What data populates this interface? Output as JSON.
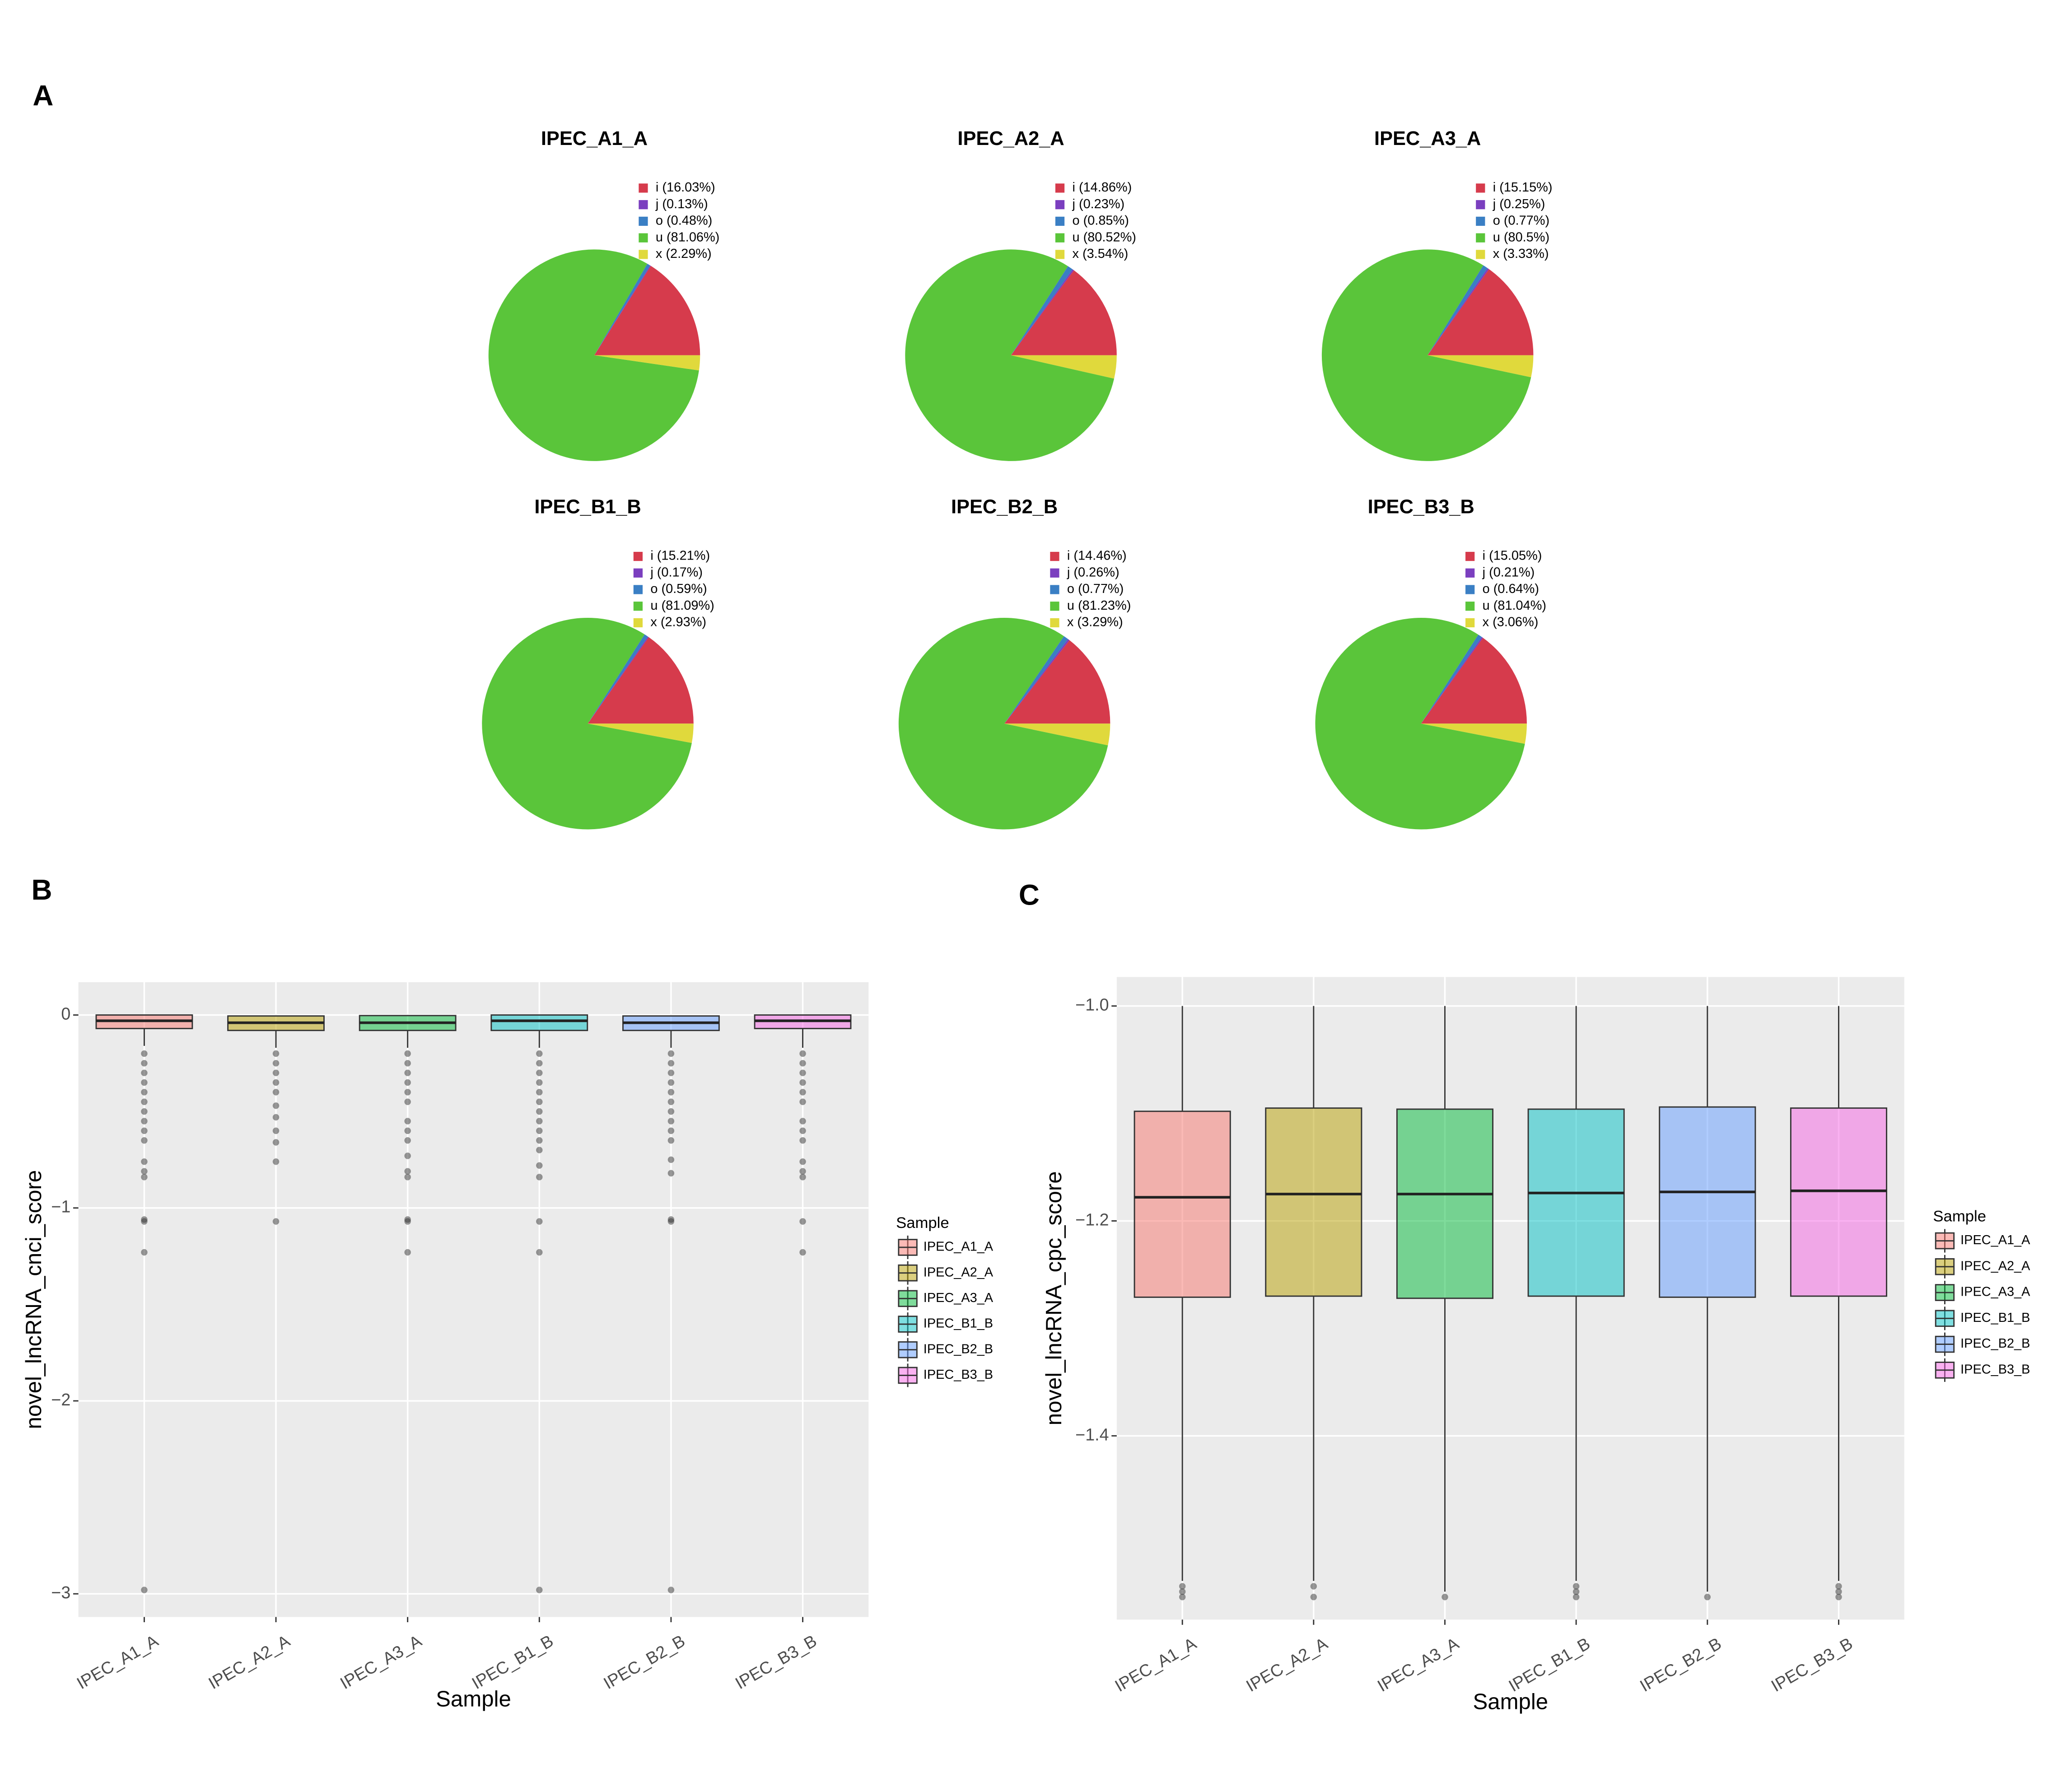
{
  "panel_labels": [
    "A",
    "B",
    "C"
  ],
  "chart_data": [
    {
      "type": "pie",
      "title": "IPEC_A1_A",
      "categories": [
        "i (16.03%)",
        "j (0.13%)",
        "o (0.48%)",
        "u (81.06%)",
        "x (2.29%)"
      ],
      "values": [
        16.03,
        0.13,
        0.48,
        81.06,
        2.29
      ],
      "colors": [
        "#d63b4c",
        "#7b3fbf",
        "#3a7fc4",
        "#5ac53a",
        "#e0d93c"
      ]
    },
    {
      "type": "pie",
      "title": "IPEC_A2_A",
      "categories": [
        "i (14.86%)",
        "j (0.23%)",
        "o (0.85%)",
        "u (80.52%)",
        "x (3.54%)"
      ],
      "values": [
        14.86,
        0.23,
        0.85,
        80.52,
        3.54
      ],
      "colors": [
        "#d63b4c",
        "#7b3fbf",
        "#3a7fc4",
        "#5ac53a",
        "#e0d93c"
      ]
    },
    {
      "type": "pie",
      "title": "IPEC_A3_A",
      "categories": [
        "i (15.15%)",
        "j (0.25%)",
        "o (0.77%)",
        "u (80.5%)",
        "x (3.33%)"
      ],
      "values": [
        15.15,
        0.25,
        0.77,
        80.5,
        3.33
      ],
      "colors": [
        "#d63b4c",
        "#7b3fbf",
        "#3a7fc4",
        "#5ac53a",
        "#e0d93c"
      ]
    },
    {
      "type": "pie",
      "title": "IPEC_B1_B",
      "categories": [
        "i (15.21%)",
        "j (0.17%)",
        "o (0.59%)",
        "u (81.09%)",
        "x (2.93%)"
      ],
      "values": [
        15.21,
        0.17,
        0.59,
        81.09,
        2.93
      ],
      "colors": [
        "#d63b4c",
        "#7b3fbf",
        "#3a7fc4",
        "#5ac53a",
        "#e0d93c"
      ]
    },
    {
      "type": "pie",
      "title": "IPEC_B2_B",
      "categories": [
        "i (14.46%)",
        "j (0.26%)",
        "o (0.77%)",
        "u (81.23%)",
        "x (3.29%)"
      ],
      "values": [
        14.46,
        0.26,
        0.77,
        81.23,
        3.29
      ],
      "colors": [
        "#d63b4c",
        "#7b3fbf",
        "#3a7fc4",
        "#5ac53a",
        "#e0d93c"
      ]
    },
    {
      "type": "pie",
      "title": "IPEC_B3_B",
      "categories": [
        "i (15.05%)",
        "j (0.21%)",
        "o (0.64%)",
        "u (81.04%)",
        "x (3.06%)"
      ],
      "values": [
        15.05,
        0.21,
        0.64,
        81.04,
        3.06
      ],
      "colors": [
        "#d63b4c",
        "#7b3fbf",
        "#3a7fc4",
        "#5ac53a",
        "#e0d93c"
      ]
    },
    {
      "type": "box",
      "x_label": "Sample",
      "y_label": "novel_lncRNA_cnci_score",
      "legend_title": "Sample",
      "categories": [
        "IPEC_A1_A",
        "IPEC_A2_A",
        "IPEC_A3_A",
        "IPEC_B1_B",
        "IPEC_B2_B",
        "IPEC_B3_B"
      ],
      "ylim": [
        -3.12,
        0.17
      ],
      "yticks": [
        0,
        {
          "value": -1,
          "label": "−1"
        },
        {
          "value": -2,
          "label": "−2"
        },
        {
          "value": -3,
          "label": "−3"
        }
      ],
      "grid": true,
      "series": [
        {
          "name": "IPEC_A1_A",
          "color": "#F8766D",
          "whisker_low": -0.16,
          "q1": -0.07,
          "median": -0.03,
          "q3": 0,
          "whisker_high": 0,
          "outliers": [
            -0.2,
            -0.25,
            -0.3,
            -0.35,
            -0.4,
            -0.45,
            -0.5,
            -0.55,
            -0.6,
            -0.65,
            -0.76,
            -0.81,
            -0.84,
            -1.06,
            -1.07,
            -1.23,
            -2.98
          ]
        },
        {
          "name": "IPEC_A2_A",
          "color": "#B79F00",
          "whisker_low": -0.17,
          "q1": -0.08,
          "median": -0.04,
          "q3": -0.005,
          "whisker_high": -0.005,
          "outliers": [
            -0.2,
            -0.25,
            -0.3,
            -0.35,
            -0.4,
            -0.47,
            -0.53,
            -0.6,
            -0.66,
            -0.76,
            -1.07
          ]
        },
        {
          "name": "IPEC_A3_A",
          "color": "#00BA38",
          "whisker_low": -0.17,
          "q1": -0.08,
          "median": -0.04,
          "q3": -0.003,
          "whisker_high": -0.003,
          "outliers": [
            -0.2,
            -0.25,
            -0.3,
            -0.35,
            -0.4,
            -0.45,
            -0.55,
            -0.6,
            -0.65,
            -0.73,
            -0.81,
            -0.84,
            -1.06,
            -1.07,
            -1.23
          ]
        },
        {
          "name": "IPEC_B1_B",
          "color": "#00BFC4",
          "whisker_low": -0.17,
          "q1": -0.08,
          "median": -0.03,
          "q3": 0,
          "whisker_high": 0,
          "outliers": [
            -0.2,
            -0.25,
            -0.3,
            -0.35,
            -0.4,
            -0.45,
            -0.5,
            -0.55,
            -0.6,
            -0.65,
            -0.7,
            -0.78,
            -0.84,
            -1.07,
            -1.23,
            -2.98
          ]
        },
        {
          "name": "IPEC_B2_B",
          "color": "#619CFF",
          "whisker_low": -0.17,
          "q1": -0.08,
          "median": -0.04,
          "q3": -0.005,
          "whisker_high": -0.005,
          "outliers": [
            -0.2,
            -0.25,
            -0.3,
            -0.35,
            -0.4,
            -0.45,
            -0.5,
            -0.55,
            -0.6,
            -0.65,
            -0.75,
            -0.82,
            -1.06,
            -1.07,
            -2.98
          ]
        },
        {
          "name": "IPEC_B3_B",
          "color": "#F564E3",
          "whisker_low": -0.17,
          "q1": -0.07,
          "median": -0.03,
          "q3": 0,
          "whisker_high": 0,
          "outliers": [
            -0.2,
            -0.25,
            -0.3,
            -0.35,
            -0.4,
            -0.45,
            -0.55,
            -0.6,
            -0.65,
            -0.76,
            -0.81,
            -0.84,
            -1.07,
            -1.23
          ]
        }
      ]
    },
    {
      "type": "box",
      "x_label": "Sample",
      "y_label": "novel_lncRNA_cpc_score",
      "legend_title": "Sample",
      "categories": [
        "IPEC_A1_A",
        "IPEC_A2_A",
        "IPEC_A3_A",
        "IPEC_B1_B",
        "IPEC_B2_B",
        "IPEC_B3_B"
      ],
      "ylim": [
        -1.571,
        -0.973
      ],
      "yticks": [
        {
          "value": -1.0,
          "label": "−1.0"
        },
        {
          "value": -1.2,
          "label": "−1.2"
        },
        {
          "value": -1.4,
          "label": "−1.4"
        }
      ],
      "grid": true,
      "series": [
        {
          "name": "IPEC_A1_A",
          "color": "#F8766D",
          "whisker_low": -1.535,
          "q1": -1.271,
          "median": -1.178,
          "q3": -1.098,
          "whisker_high": -1.0,
          "outliers": [
            -1.54,
            -1.545,
            -1.55
          ]
        },
        {
          "name": "IPEC_A2_A",
          "color": "#B79F00",
          "whisker_low": -1.535,
          "q1": -1.27,
          "median": -1.175,
          "q3": -1.095,
          "whisker_high": -1.0,
          "outliers": [
            -1.54,
            -1.55
          ]
        },
        {
          "name": "IPEC_A3_A",
          "color": "#00BA38",
          "whisker_low": -1.545,
          "q1": -1.272,
          "median": -1.175,
          "q3": -1.096,
          "whisker_high": -1.0,
          "outliers": [
            -1.55
          ]
        },
        {
          "name": "IPEC_B1_B",
          "color": "#00BFC4",
          "whisker_low": -1.535,
          "q1": -1.27,
          "median": -1.174,
          "q3": -1.096,
          "whisker_high": -1.0,
          "outliers": [
            -1.54,
            -1.545,
            -1.55
          ]
        },
        {
          "name": "IPEC_B2_B",
          "color": "#619CFF",
          "whisker_low": -1.545,
          "q1": -1.271,
          "median": -1.173,
          "q3": -1.094,
          "whisker_high": -1.0,
          "outliers": [
            -1.55
          ]
        },
        {
          "name": "IPEC_B3_B",
          "color": "#F564E3",
          "whisker_low": -1.535,
          "q1": -1.27,
          "median": -1.172,
          "q3": -1.095,
          "whisker_high": -1.0,
          "outliers": [
            -1.54,
            -1.545,
            -1.55
          ]
        }
      ]
    }
  ]
}
